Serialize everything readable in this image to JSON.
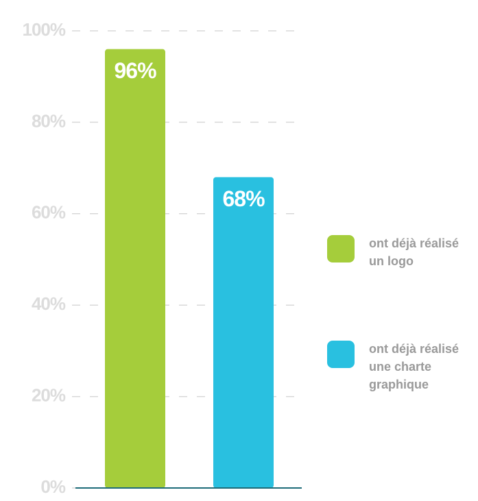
{
  "chart_data": {
    "type": "bar",
    "series": [
      {
        "name": "ont déjà réalisé un logo",
        "color": "#a5cd3b",
        "values": [
          96
        ],
        "value_labels": [
          "96%"
        ]
      },
      {
        "name": "ont déjà réalisé une charte graphique",
        "color": "#29c0e0",
        "values": [
          68
        ],
        "value_labels": [
          "68%"
        ]
      }
    ],
    "ylim": [
      0,
      100
    ],
    "yticks": [
      {
        "value": 0,
        "label": "0%"
      },
      {
        "value": 20,
        "label": "20%"
      },
      {
        "value": 40,
        "label": "40%"
      },
      {
        "value": 60,
        "label": "60%"
      },
      {
        "value": 80,
        "label": "80%"
      },
      {
        "value": 100,
        "label": "100%"
      }
    ],
    "grid": true,
    "legend": "right"
  }
}
